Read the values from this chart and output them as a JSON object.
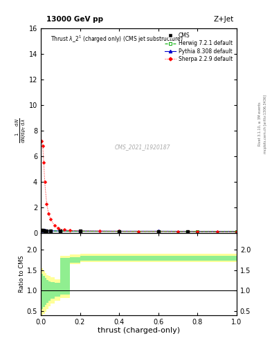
{
  "title_top": "13000 GeV pp",
  "title_right": "Z+Jet",
  "xlabel": "thrust (charged-only)",
  "ylabel_ratio": "Ratio to CMS",
  "watermark": "CMS_2021_I1920187",
  "right_label_top": "Rivet 3.1.10, ≥ 3M events",
  "right_label_bot": "mcplots.cern.ch [arXiv:1306.3436]",
  "xlim": [
    0,
    1
  ],
  "ylim_main": [
    0,
    16
  ],
  "ylim_ratio": [
    0.4,
    2.4
  ],
  "sherpa_x": [
    0.005,
    0.01,
    0.015,
    0.02,
    0.03,
    0.04,
    0.05,
    0.07,
    0.09,
    0.12,
    0.15,
    0.2,
    0.3,
    0.4,
    0.5,
    0.6,
    0.7,
    0.8,
    0.9,
    1.0
  ],
  "sherpa_y": [
    7.2,
    6.8,
    5.5,
    4.0,
    2.3,
    1.5,
    1.1,
    0.6,
    0.38,
    0.26,
    0.21,
    0.18,
    0.16,
    0.15,
    0.14,
    0.14,
    0.13,
    0.13,
    0.12,
    0.12
  ],
  "pythia_x": [
    0.005,
    0.01,
    0.02,
    0.03,
    0.05,
    0.1,
    0.2,
    0.4,
    0.6,
    0.8,
    1.0
  ],
  "pythia_y": [
    0.22,
    0.21,
    0.2,
    0.19,
    0.18,
    0.17,
    0.16,
    0.15,
    0.15,
    0.14,
    0.14
  ],
  "herwig_x": [
    0.005,
    0.01,
    0.02,
    0.03,
    0.05,
    0.1,
    0.2,
    0.4,
    0.6,
    0.8,
    1.0
  ],
  "herwig_y": [
    0.2,
    0.2,
    0.19,
    0.18,
    0.17,
    0.16,
    0.15,
    0.14,
    0.14,
    0.13,
    0.13
  ],
  "cms_x": [
    0.005,
    0.01,
    0.02,
    0.03,
    0.05,
    0.1,
    0.2,
    0.4,
    0.6,
    0.75
  ],
  "cms_y": [
    0.21,
    0.2,
    0.19,
    0.18,
    0.17,
    0.16,
    0.15,
    0.14,
    0.14,
    0.13
  ],
  "ratio_yellow_x": [
    0.0,
    0.01,
    0.02,
    0.03,
    0.04,
    0.05,
    0.07,
    0.1,
    0.15,
    0.2,
    1.0
  ],
  "ratio_yellow_lo": [
    0.4,
    0.42,
    0.48,
    0.55,
    0.62,
    0.68,
    0.75,
    0.82,
    1.65,
    1.7,
    1.7
  ],
  "ratio_yellow_hi": [
    1.55,
    1.48,
    1.42,
    1.38,
    1.35,
    1.32,
    1.28,
    1.85,
    1.88,
    1.9,
    1.9
  ],
  "ratio_green_x": [
    0.0,
    0.01,
    0.02,
    0.03,
    0.04,
    0.05,
    0.07,
    0.1,
    0.15,
    0.2,
    1.0
  ],
  "ratio_green_lo": [
    0.55,
    0.6,
    0.65,
    0.7,
    0.75,
    0.8,
    0.85,
    0.9,
    1.68,
    1.72,
    1.72
  ],
  "ratio_green_hi": [
    1.4,
    1.35,
    1.3,
    1.25,
    1.22,
    1.2,
    1.18,
    1.8,
    1.82,
    1.85,
    1.85
  ],
  "color_sherpa": "#ff0000",
  "color_pythia": "#0000cc",
  "color_herwig": "#00aa00",
  "color_cms": "#000000",
  "color_green_band": "#90ee90",
  "color_yellow_band": "#ffff99",
  "fig_width": 3.93,
  "fig_height": 5.12,
  "dpi": 100
}
